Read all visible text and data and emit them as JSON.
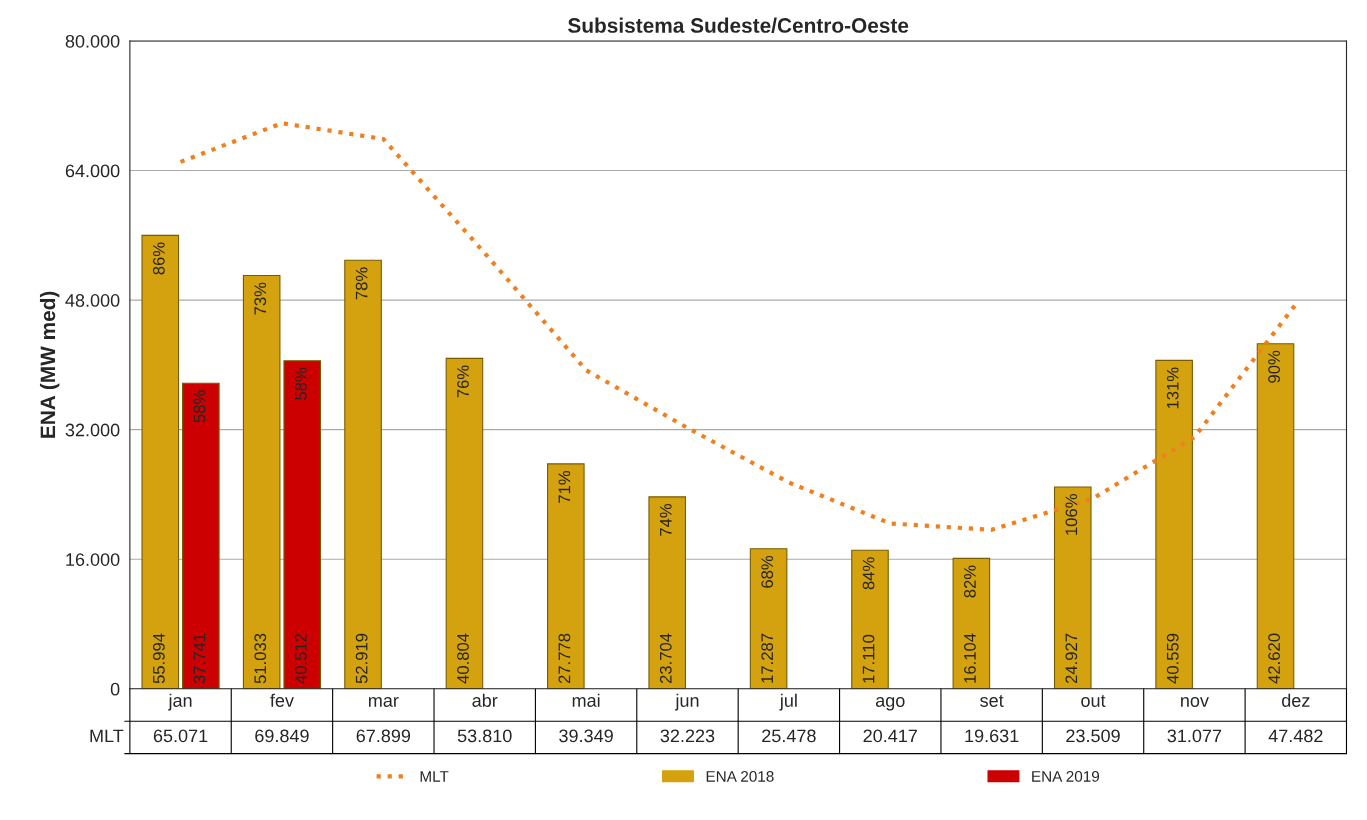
{
  "chart_data": {
    "type": "bar",
    "title": "Subsistema Sudeste/Centro-Oeste",
    "ylabel": "ENA (MW med)",
    "categories": [
      "jan",
      "fev",
      "mar",
      "abr",
      "mai",
      "jun",
      "jul",
      "ago",
      "set",
      "out",
      "nov",
      "dez"
    ],
    "series": [
      {
        "name": "MLT",
        "type": "line",
        "color": "#f07f1e",
        "line_style": "dotted",
        "values": [
          65071,
          69849,
          67899,
          53810,
          39349,
          32223,
          25478,
          20417,
          19631,
          23509,
          31077,
          47482
        ],
        "value_labels": [
          "65.071",
          "69.849",
          "67.899",
          "53.810",
          "39.349",
          "32.223",
          "25.478",
          "20.417",
          "19.631",
          "23.509",
          "31.077",
          "47.482"
        ]
      },
      {
        "name": "ENA 2018",
        "color": "#d4a20e",
        "values": [
          55994,
          51033,
          52919,
          40804,
          27778,
          23704,
          17287,
          17110,
          16104,
          24927,
          40559,
          42620
        ],
        "value_labels": [
          "55.994",
          "51.033",
          "52.919",
          "40.804",
          "27.778",
          "23.704",
          "17.287",
          "17.110",
          "16.104",
          "24.927",
          "40.559",
          "42.620"
        ]
      },
      {
        "name": "ENA 2019",
        "color": "#cc0000",
        "values": [
          37741,
          40512,
          null,
          null,
          null,
          null,
          null,
          null,
          null,
          null,
          null,
          null
        ],
        "value_labels": [
          "37.741",
          "40.512",
          null,
          null,
          null,
          null,
          null,
          null,
          null,
          null,
          null,
          null
        ]
      }
    ],
    "annotations": [
      {
        "text": "86%",
        "x": "jan",
        "y": 55994
      },
      {
        "text": "73%",
        "x": "fev",
        "y": 51033
      },
      {
        "text": "78%",
        "x": "mar",
        "y": 52919
      },
      {
        "text": "76%",
        "x": "abr",
        "y": 40804
      },
      {
        "text": "71%",
        "x": "mai",
        "y": 27778
      },
      {
        "text": "74%",
        "x": "jun",
        "y": 23704
      },
      {
        "text": "68%",
        "x": "jul",
        "y": 17287
      },
      {
        "text": "84%",
        "x": "ago",
        "y": 17110
      },
      {
        "text": "82%",
        "x": "set",
        "y": 16104
      },
      {
        "text": "106%",
        "x": "out",
        "y": 24927
      },
      {
        "text": "131%",
        "x": "nov",
        "y": 40559
      },
      {
        "text": "90%",
        "x": "dez",
        "y": 42620
      },
      {
        "text": "58%",
        "x": "jan",
        "y": 37741
      },
      {
        "text": "58%",
        "x": "fev",
        "y": 40512
      }
    ],
    "ylim": [
      0,
      80000
    ],
    "yticks": [
      {
        "value": 0,
        "label": "0"
      },
      {
        "value": 16000,
        "label": "16.000"
      },
      {
        "value": 32000,
        "label": "32.000"
      },
      {
        "value": 48000,
        "label": "48.000"
      },
      {
        "value": 64000,
        "label": "64.000"
      },
      {
        "value": 80000,
        "label": "80.000"
      }
    ],
    "grid": "y",
    "legend": "bottom"
  }
}
